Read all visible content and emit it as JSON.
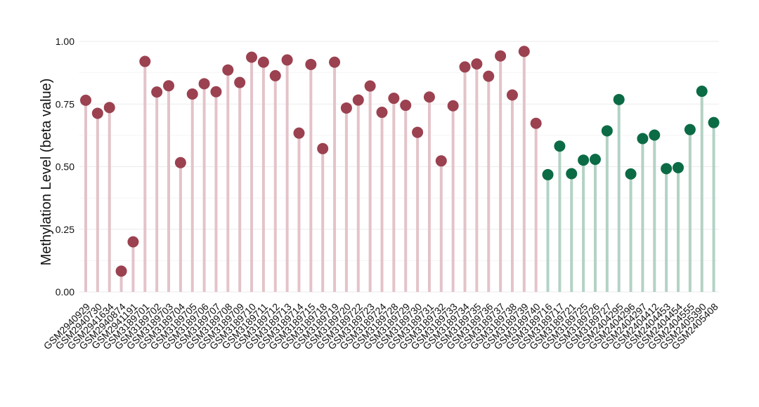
{
  "chart_data": {
    "type": "lollipop",
    "title": "",
    "xlabel": "",
    "ylabel": "Methylation Level (beta value)",
    "ylim": [
      0,
      1
    ],
    "yticks": [
      "0.00",
      "0.25",
      "0.50",
      "0.75",
      "1.00"
    ],
    "ytick_values": [
      0,
      0.25,
      0.5,
      0.75,
      1.0
    ],
    "grid": true,
    "legend": "none",
    "colors": {
      "group_a_point": "#9b4150",
      "group_a_stem": "#e3c3c9",
      "group_b_point": "#0b6b45",
      "group_b_stem": "#b3d2c4"
    },
    "categories": [
      "GSM2940929",
      "GSM2940730",
      "GSM2941634",
      "GSM2940874",
      "GSM2941191",
      "GSM3189701",
      "GSM3189702",
      "GSM3189703",
      "GSM3189704",
      "GSM3189705",
      "GSM3189706",
      "GSM3189707",
      "GSM3189708",
      "GSM3189709",
      "GSM3189710",
      "GSM3189711",
      "GSM3189712",
      "GSM3189713",
      "GSM3189714",
      "GSM3189715",
      "GSM3189718",
      "GSM3189719",
      "GSM3189720",
      "GSM3189722",
      "GSM3189723",
      "GSM3189724",
      "GSM3189728",
      "GSM3189729",
      "GSM3189730",
      "GSM3189731",
      "GSM3189732",
      "GSM3189733",
      "GSM3189734",
      "GSM3189735",
      "GSM3189736",
      "GSM3189737",
      "GSM3189738",
      "GSM3189739",
      "GSM3189740",
      "GSM3189716",
      "GSM3189717",
      "GSM3189721",
      "GSM3189725",
      "GSM3189726",
      "GSM3189727",
      "GSM2404295",
      "GSM2404296",
      "GSM2404297",
      "GSM2404412",
      "GSM2404453",
      "GSM2404454",
      "GSM2404555",
      "GSM2405390",
      "GSM2405408"
    ],
    "values": [
      0.765,
      0.713,
      0.736,
      0.083,
      0.2,
      0.92,
      0.798,
      0.823,
      0.516,
      0.79,
      0.831,
      0.799,
      0.886,
      0.836,
      0.937,
      0.917,
      0.863,
      0.926,
      0.634,
      0.908,
      0.572,
      0.917,
      0.734,
      0.766,
      0.822,
      0.717,
      0.773,
      0.745,
      0.637,
      0.778,
      0.523,
      0.743,
      0.898,
      0.91,
      0.861,
      0.942,
      0.786,
      0.96,
      0.673,
      0.468,
      0.582,
      0.472,
      0.526,
      0.529,
      0.643,
      0.768,
      0.471,
      0.612,
      0.626,
      0.492,
      0.496,
      0.648,
      0.801,
      0.676
    ],
    "groups": [
      "A",
      "A",
      "A",
      "A",
      "A",
      "A",
      "A",
      "A",
      "A",
      "A",
      "A",
      "A",
      "A",
      "A",
      "A",
      "A",
      "A",
      "A",
      "A",
      "A",
      "A",
      "A",
      "A",
      "A",
      "A",
      "A",
      "A",
      "A",
      "A",
      "A",
      "A",
      "A",
      "A",
      "A",
      "A",
      "A",
      "A",
      "A",
      "A",
      "B",
      "B",
      "B",
      "B",
      "B",
      "B",
      "B",
      "B",
      "B",
      "B",
      "B",
      "B",
      "B",
      "B",
      "B"
    ]
  }
}
